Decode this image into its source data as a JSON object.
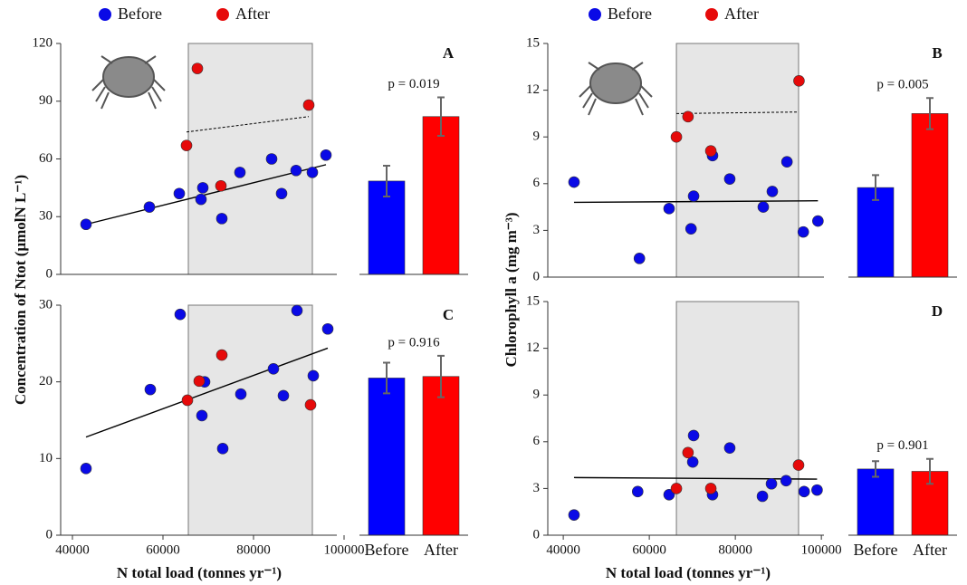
{
  "chart_data": [
    {
      "type": "scatter",
      "ylabel": "Concentration of Ntot (µmolN L⁻¹)",
      "xlim": [
        37400,
        98400
      ],
      "ylim": [
        0,
        120
      ],
      "yticks": [
        0,
        30,
        60,
        90,
        120
      ],
      "highlight_x": [
        65600,
        93000
      ],
      "series": [
        {
          "name": "Before",
          "color": "#0a0ae6",
          "x": [
            43000,
            57000,
            63600,
            68800,
            68400,
            73000,
            77000,
            84000,
            86200,
            89400,
            93000,
            96000
          ],
          "values": [
            26,
            35,
            42,
            45,
            39,
            29,
            53,
            60,
            42,
            54,
            53,
            62
          ]
        },
        {
          "name": "After",
          "color": "#e60a0a",
          "x": [
            65200,
            67600,
            72800,
            92200
          ],
          "values": [
            67,
            107,
            46,
            88
          ]
        }
      ],
      "lines": [
        {
          "x": [
            43000,
            96000
          ],
          "y": [
            26,
            57
          ],
          "dashed": false
        },
        {
          "x": [
            65200,
            92200
          ],
          "y": [
            74,
            82
          ],
          "dashed": true
        }
      ]
    },
    {
      "type": "bar",
      "label": "A",
      "p_label": "p = 0.019",
      "ylim": [
        0,
        120
      ],
      "values": [
        48.5,
        82
      ],
      "errors": [
        8,
        10
      ],
      "colors": [
        "#0000ff",
        "#ff0000"
      ]
    },
    {
      "type": "scatter",
      "ylabel": "Chlorophyll a (mg m⁻³)",
      "xlim": [
        36400,
        100600
      ],
      "ylim": [
        0,
        15
      ],
      "yticks": [
        0,
        3,
        6,
        9,
        12,
        15
      ],
      "highlight_x": [
        66300,
        94700
      ],
      "series": [
        {
          "name": "Before",
          "color": "#0a0ae6",
          "x": [
            42500,
            57700,
            64600,
            70300,
            69700,
            74700,
            78700,
            86500,
            88600,
            92000,
            95800,
            99200
          ],
          "values": [
            6.1,
            1.2,
            4.4,
            5.2,
            3.1,
            7.8,
            6.3,
            4.5,
            5.5,
            7.4,
            2.9,
            3.6
          ]
        },
        {
          "name": "After",
          "color": "#e60a0a",
          "x": [
            66300,
            69000,
            74300,
            94800
          ],
          "values": [
            9.0,
            10.3,
            8.1,
            12.6
          ]
        }
      ],
      "lines": [
        {
          "x": [
            42500,
            99200
          ],
          "y": [
            4.8,
            4.9
          ],
          "dashed": false
        },
        {
          "x": [
            66300,
            94700
          ],
          "y": [
            10.5,
            10.6
          ],
          "dashed": true
        }
      ]
    },
    {
      "type": "bar",
      "label": "B",
      "p_label": "p = 0.005",
      "ylim": [
        0,
        15
      ],
      "values": [
        5.75,
        10.5
      ],
      "errors": [
        0.8,
        1.0
      ],
      "colors": [
        "#0000ff",
        "#ff0000"
      ]
    },
    {
      "type": "scatter",
      "xlabel": "N total load (tonnes yr⁻¹)",
      "xlim": [
        37400,
        98400
      ],
      "xticks": [
        40000,
        60000,
        80000,
        100000
      ],
      "ylim": [
        0,
        30
      ],
      "yticks": [
        0,
        10,
        20,
        30
      ],
      "highlight_x": [
        65600,
        93000
      ],
      "series": [
        {
          "name": "Before",
          "color": "#0a0ae6",
          "x": [
            43000,
            57200,
            63800,
            69200,
            68600,
            73200,
            77200,
            84400,
            86600,
            89600,
            93200,
            96400
          ],
          "values": [
            8.7,
            19,
            28.8,
            20,
            15.6,
            11.3,
            18.4,
            21.7,
            18.2,
            29.3,
            20.8,
            26.9
          ]
        },
        {
          "name": "After",
          "color": "#e60a0a",
          "x": [
            65400,
            68000,
            73000,
            92600
          ],
          "values": [
            17.6,
            20.1,
            23.5,
            17
          ]
        }
      ],
      "lines": [
        {
          "x": [
            43000,
            96400
          ],
          "y": [
            12.8,
            24.4
          ],
          "dashed": false
        }
      ]
    },
    {
      "type": "bar",
      "label": "C",
      "p_label": "p = 0.916",
      "ylim": [
        0,
        30
      ],
      "categories": [
        "Before",
        "After"
      ],
      "values": [
        20.5,
        20.7
      ],
      "errors": [
        2,
        2.7
      ],
      "colors": [
        "#0000ff",
        "#ff0000"
      ]
    },
    {
      "type": "scatter",
      "xlabel": "N total load (tonnes yr⁻¹)",
      "xlim": [
        36400,
        100600
      ],
      "xticks": [
        40000,
        60000,
        80000,
        100000
      ],
      "ylim": [
        0,
        15
      ],
      "yticks": [
        0,
        3,
        6,
        9,
        12,
        15
      ],
      "highlight_x": [
        66300,
        94700
      ],
      "series": [
        {
          "name": "Before",
          "color": "#0a0ae6",
          "x": [
            42500,
            57300,
            64600,
            70100,
            70300,
            74700,
            78700,
            86300,
            88400,
            91800,
            96000,
            99000
          ],
          "values": [
            1.3,
            2.8,
            2.6,
            4.7,
            6.4,
            2.6,
            5.6,
            2.5,
            3.3,
            3.5,
            2.8,
            2.9
          ]
        },
        {
          "name": "After",
          "color": "#e60a0a",
          "x": [
            66300,
            69000,
            74300,
            94700
          ],
          "values": [
            3.0,
            5.3,
            3.0,
            4.5
          ]
        }
      ],
      "lines": [
        {
          "x": [
            42500,
            99000
          ],
          "y": [
            3.7,
            3.6
          ],
          "dashed": false
        }
      ]
    },
    {
      "type": "bar",
      "label": "D",
      "p_label": "p = 0.901",
      "ylim": [
        0,
        15
      ],
      "categories": [
        "Before",
        "After"
      ],
      "values": [
        4.25,
        4.1
      ],
      "errors": [
        0.5,
        0.8
      ],
      "colors": [
        "#0000ff",
        "#ff0000"
      ]
    }
  ]
}
